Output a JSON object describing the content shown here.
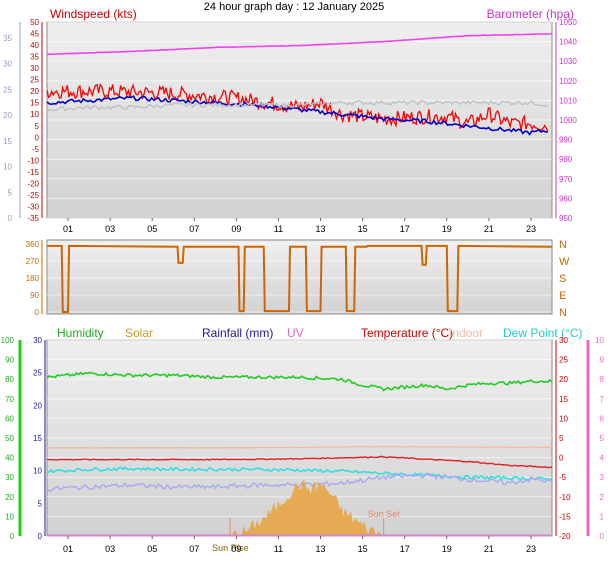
{
  "title": "24 hour graph day : 12 January 2025",
  "colors": {
    "plot_bg_top": "#efefef",
    "plot_bg_bottom": "#d2d2d2",
    "wind_gust": "#ff0000",
    "wind_avg": "#0000cc",
    "wind_grey": "#c0c0c0",
    "barometer": "#ee44ee",
    "direction": "#cc6600",
    "humidity": "#22cc22",
    "solar": "#e8a23c",
    "rainfall": "#1a1a99",
    "uv": "#ee66cc",
    "temperature": "#dd2222",
    "indoor": "#f0b8a0",
    "dewpoint": "#33dddd",
    "low_series": "#aaaaee"
  },
  "x_ticks": [
    "01",
    "03",
    "05",
    "07",
    "09",
    "11",
    "13",
    "15",
    "17",
    "19",
    "21",
    "23"
  ],
  "chart_data": [
    {
      "type": "line",
      "title": "Windspeed (kts)",
      "right_title": "Barometer (hpa)",
      "left_axis": {
        "ylim": [
          -35,
          50
        ],
        "ticks": [
          50,
          45,
          40,
          35,
          30,
          25,
          20,
          15,
          10,
          5,
          0,
          -5,
          -10,
          -15,
          -20,
          -25,
          -30,
          -35
        ]
      },
      "right_axis": {
        "ylim": [
          950,
          1050
        ],
        "ticks": [
          1050,
          1040,
          1030,
          1020,
          1010,
          1000,
          990,
          980,
          970,
          960,
          950
        ]
      },
      "outer_left_axis": {
        "ticks": [
          35,
          30,
          25,
          20,
          15,
          10,
          5,
          0
        ]
      },
      "series": [
        {
          "axis": "right",
          "color_key": "barometer",
          "x": [
            0,
            4,
            8,
            12,
            16,
            20,
            24
          ],
          "values": [
            1033.5,
            1035,
            1037,
            1038,
            1040,
            1043,
            1044
          ]
        },
        {
          "axis": "left",
          "color_key": "wind_gust",
          "x": [
            0,
            3,
            6,
            9,
            12,
            13,
            14,
            16,
            18,
            19,
            20,
            21,
            22,
            23,
            23.8
          ],
          "values": [
            20,
            20,
            19,
            17,
            13,
            15,
            10,
            8,
            9,
            9,
            6,
            10,
            6,
            6,
            5
          ]
        },
        {
          "axis": "left",
          "color_key": "wind_avg",
          "x": [
            0,
            2,
            4,
            6,
            8,
            10,
            12,
            14,
            16,
            18,
            20,
            22,
            23,
            23.8
          ],
          "values": [
            15,
            16,
            17,
            16,
            15,
            14,
            12,
            10,
            8,
            7,
            5,
            3,
            2,
            3
          ]
        },
        {
          "axis": "left",
          "color_key": "wind_grey",
          "x": [
            0,
            2,
            4,
            6,
            8,
            10,
            12,
            14,
            16,
            18,
            20,
            22,
            23,
            23.8
          ],
          "values": [
            12,
            13,
            13,
            14,
            14,
            14,
            14,
            15,
            15,
            15,
            15,
            15,
            15,
            14
          ]
        }
      ]
    },
    {
      "type": "line",
      "title": "",
      "left_axis": {
        "ylim": [
          0,
          360
        ],
        "ticks": [
          360,
          270,
          180,
          90,
          0
        ]
      },
      "right_labels": [
        "N",
        "W",
        "S",
        "E",
        "N"
      ],
      "series": [
        {
          "color_key": "direction",
          "x": [
            0,
            0.7,
            0.75,
            1.0,
            1.05,
            6.2,
            6.25,
            6.45,
            6.5,
            9.1,
            9.15,
            9.35,
            9.4,
            10.3,
            10.35,
            11.5,
            11.55,
            12.3,
            12.35,
            13.0,
            13.05,
            14.2,
            14.25,
            14.6,
            14.65,
            15.2,
            15.25,
            17.8,
            17.85,
            18.0,
            18.05,
            19.0,
            19.05,
            19.5,
            19.55,
            24.0
          ],
          "values": [
            350,
            350,
            0,
            0,
            350,
            345,
            260,
            260,
            345,
            345,
            5,
            5,
            345,
            345,
            5,
            5,
            345,
            345,
            5,
            5,
            345,
            345,
            5,
            5,
            345,
            345,
            350,
            350,
            250,
            250,
            350,
            350,
            5,
            5,
            350,
            345
          ]
        }
      ]
    },
    {
      "type": "line",
      "title": "",
      "labels": {
        "humidity": "Humidity",
        "solar": "Solar",
        "rainfall": "Rainfall (mm)",
        "uv": "UV",
        "temperature": "Temperature (°C)",
        "indoor": "Indoor",
        "dewpoint": "Dew Point (°C)"
      },
      "humidity_axis": {
        "ylim": [
          0,
          100
        ],
        "ticks": [
          100,
          90,
          80,
          70,
          60,
          50,
          40,
          30,
          20,
          10,
          0
        ]
      },
      "rain_axis": {
        "ylim": [
          0,
          30
        ],
        "ticks": [
          30,
          25,
          20,
          15,
          10,
          5,
          0
        ]
      },
      "temp_axis": {
        "ylim": [
          -20,
          30
        ],
        "ticks": [
          30,
          25,
          20,
          15,
          10,
          5,
          0,
          -5,
          -10,
          -15,
          -20
        ]
      },
      "uv_axis": {
        "ylim": [
          0,
          10
        ],
        "ticks": [
          10,
          9,
          8,
          7,
          6,
          5,
          4,
          3,
          2,
          1,
          0
        ]
      },
      "annotations": {
        "sunrise": "Sun Rise",
        "sunset": "Sun Set"
      },
      "sunrise_hour": 8.7,
      "sunset_hour": 16.0,
      "series": [
        {
          "name": "Humidity",
          "axis": "humidity",
          "color_key": "humidity",
          "x": [
            0,
            2,
            4,
            6,
            8,
            10,
            12,
            14,
            15,
            16,
            17,
            18,
            19,
            20,
            21,
            22,
            23,
            24
          ],
          "values": [
            81,
            83,
            82,
            82,
            81,
            81,
            81,
            80,
            77,
            75,
            76,
            77,
            75,
            77,
            78,
            78,
            79,
            79
          ]
        },
        {
          "name": "Temperature (°C)",
          "axis": "temp",
          "color_key": "temperature",
          "x": [
            0,
            4,
            8,
            12,
            16,
            20,
            22,
            24
          ],
          "values": [
            -0.5,
            -0.5,
            -0.5,
            -0.3,
            0.2,
            -1.0,
            -2.0,
            -2.5
          ]
        },
        {
          "name": "Indoor",
          "axis": "temp",
          "color_key": "indoor",
          "x": [
            0,
            4,
            8,
            12,
            16,
            20,
            24
          ],
          "values": [
            2.5,
            2.5,
            2.5,
            2.6,
            2.8,
            2.7,
            2.6
          ]
        },
        {
          "name": "Dew Point (°C)",
          "axis": "temp",
          "color_key": "dewpoint",
          "x": [
            0,
            2,
            4,
            6,
            8,
            10,
            12,
            14,
            16,
            18,
            20,
            22,
            24
          ],
          "values": [
            -3.5,
            -3.0,
            -2.8,
            -3.0,
            -3.0,
            -3.0,
            -3.2,
            -3.5,
            -4.0,
            -4.5,
            -5.0,
            -5.2,
            -5.5
          ]
        },
        {
          "name": "",
          "axis": "temp",
          "color_key": "low_series",
          "x": [
            0,
            2,
            4,
            6,
            8,
            10,
            12,
            14,
            16,
            18,
            20,
            22,
            23,
            24
          ],
          "values": [
            -8,
            -7.5,
            -7,
            -7.5,
            -7.5,
            -7,
            -7,
            -6.5,
            -5,
            -4.5,
            -5.5,
            -6.5,
            -5.5,
            -6
          ]
        },
        {
          "name": "Solar",
          "axis": "solar",
          "color_key": "solar",
          "x": [
            8.7,
            9.5,
            10.5,
            11.5,
            12.0,
            12.5,
            13.0,
            13.5,
            14.0,
            15.0,
            16.0
          ],
          "values": [
            0,
            1,
            4,
            8,
            10,
            9,
            10,
            8,
            5,
            2,
            0
          ]
        }
      ]
    }
  ]
}
